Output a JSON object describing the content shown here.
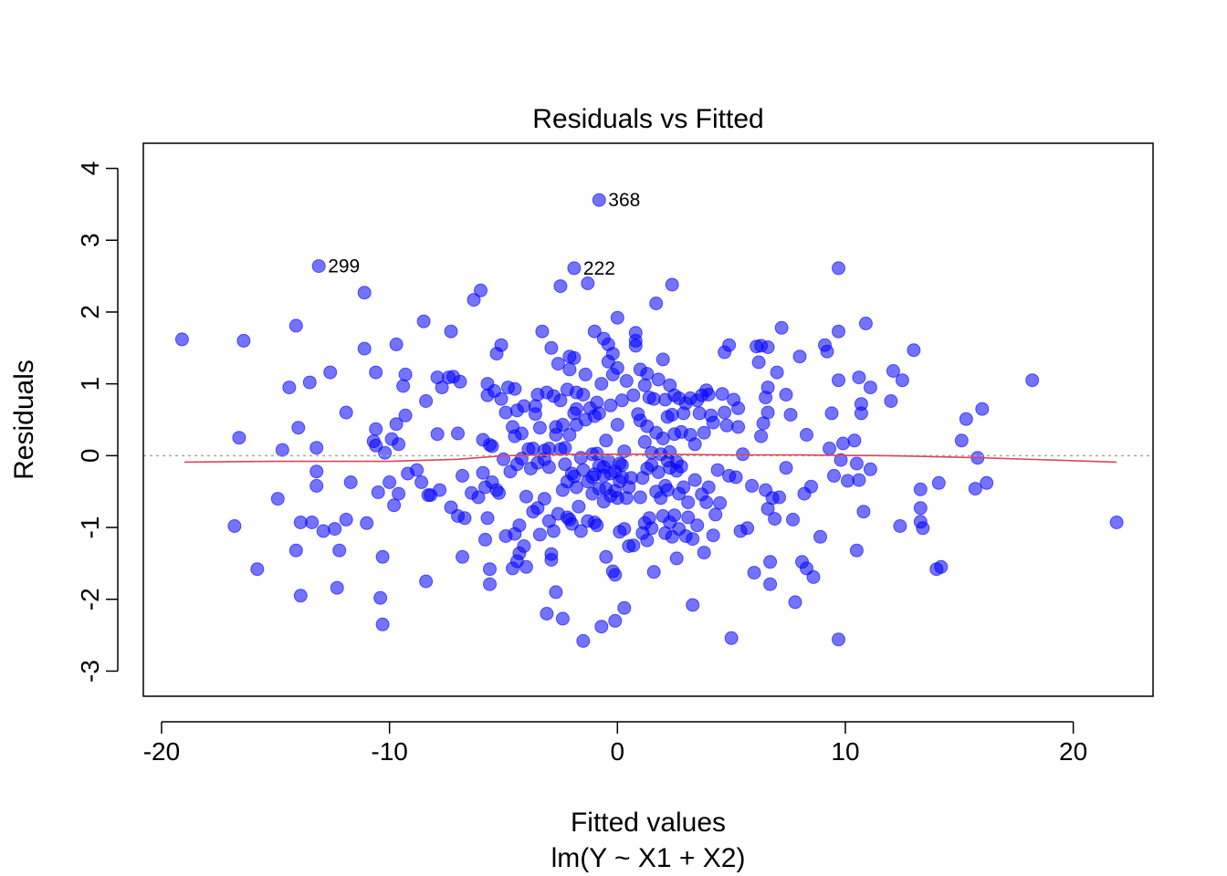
{
  "chart_data": {
    "type": "scatter",
    "title": "Residuals vs Fitted",
    "xlabel": "Fitted values",
    "sublabel": "lm(Y ~ X1 + X2)",
    "ylabel": "Residuals",
    "xlim": [
      -20.8,
      23.5
    ],
    "ylim": [
      -3.35,
      4.35
    ],
    "x_ticks": [
      -20,
      -10,
      0,
      10,
      20
    ],
    "x_tick_labels": [
      "-20",
      "-10",
      "0",
      "10",
      "20"
    ],
    "y_ticks": [
      -3,
      -2,
      -1,
      0,
      1,
      2,
      3,
      4
    ],
    "y_tick_labels": [
      "-3",
      "-2",
      "-1",
      "0",
      "1",
      "2",
      "3",
      "4"
    ],
    "grid": false,
    "reference_line": {
      "y": 0,
      "color": "#aaaaaa",
      "style": "dotted"
    },
    "point_color": "#0000ff",
    "point_alpha": 0.55,
    "smoother_color": "#d9465c",
    "labeled_points": [
      {
        "label": "368",
        "x": -0.8,
        "y": 3.56
      },
      {
        "label": "299",
        "x": -13.1,
        "y": 2.64
      },
      {
        "label": "222",
        "x": -1.9,
        "y": 2.61
      }
    ],
    "smoother": {
      "x": [
        -19.0,
        -15.0,
        -10.0,
        -7.0,
        -5.0,
        -2.0,
        0.0,
        2.0,
        5.0,
        8.0,
        12.0,
        16.0,
        21.9
      ],
      "y": [
        -0.09,
        -0.08,
        -0.08,
        -0.05,
        0.0,
        0.02,
        0.02,
        0.02,
        0.01,
        0.01,
        0.0,
        -0.03,
        -0.09
      ]
    },
    "points": [
      [
        -19.1,
        1.62
      ],
      [
        -16.8,
        -0.98
      ],
      [
        -16.6,
        0.25
      ],
      [
        -16.4,
        1.6
      ],
      [
        -15.8,
        -1.58
      ],
      [
        -14.9,
        -0.6
      ],
      [
        -14.7,
        0.08
      ],
      [
        -14.4,
        0.95
      ],
      [
        -14.1,
        -1.32
      ],
      [
        -14.1,
        1.81
      ],
      [
        -14.0,
        0.39
      ],
      [
        -13.9,
        -1.95
      ],
      [
        -13.9,
        -0.93
      ],
      [
        -13.5,
        1.02
      ],
      [
        -13.4,
        -0.93
      ],
      [
        -13.2,
        0.11
      ],
      [
        -13.2,
        -0.22
      ],
      [
        -13.2,
        -0.42
      ],
      [
        -12.9,
        -1.05
      ],
      [
        -12.6,
        1.16
      ],
      [
        -12.4,
        -1.02
      ],
      [
        -12.3,
        -1.84
      ],
      [
        -12.2,
        -1.32
      ],
      [
        -11.9,
        0.6
      ],
      [
        -11.9,
        -0.89
      ],
      [
        -11.7,
        -0.37
      ],
      [
        -11.1,
        2.27
      ],
      [
        -11.1,
        1.49
      ],
      [
        -11.0,
        -0.94
      ],
      [
        -10.7,
        0.2
      ],
      [
        -10.6,
        0.37
      ],
      [
        -10.6,
        0.14
      ],
      [
        -10.6,
        1.16
      ],
      [
        -10.5,
        -0.51
      ],
      [
        -10.4,
        -1.98
      ],
      [
        -10.3,
        -1.41
      ],
      [
        -10.3,
        -2.35
      ],
      [
        -10.2,
        0.04
      ],
      [
        -10.0,
        -0.37
      ],
      [
        -9.9,
        0.23
      ],
      [
        -9.8,
        -0.69
      ],
      [
        -9.7,
        1.55
      ],
      [
        -9.7,
        0.44
      ],
      [
        -9.6,
        0.16
      ],
      [
        -9.6,
        -0.53
      ],
      [
        -9.4,
        0.97
      ],
      [
        -9.3,
        0.56
      ],
      [
        -9.3,
        1.13
      ],
      [
        -9.2,
        -0.25
      ],
      [
        -8.8,
        -0.2
      ],
      [
        -8.6,
        -0.37
      ],
      [
        -8.5,
        1.87
      ],
      [
        -8.4,
        0.76
      ],
      [
        -8.4,
        -1.75
      ],
      [
        -8.3,
        -0.55
      ],
      [
        -8.2,
        -0.55
      ],
      [
        -7.9,
        1.09
      ],
      [
        -7.9,
        0.3
      ],
      [
        -7.8,
        -0.48
      ],
      [
        -7.7,
        0.95
      ],
      [
        -7.4,
        1.09
      ],
      [
        -7.3,
        1.73
      ],
      [
        -7.3,
        -0.72
      ],
      [
        -7.2,
        1.1
      ],
      [
        -7.0,
        0.31
      ],
      [
        -7.0,
        -0.84
      ],
      [
        -6.9,
        1.03
      ],
      [
        -6.8,
        -0.28
      ],
      [
        -6.8,
        -1.41
      ],
      [
        -6.7,
        -0.87
      ],
      [
        -6.4,
        -0.52
      ],
      [
        -6.3,
        2.17
      ],
      [
        -6.1,
        -0.58
      ],
      [
        -6.0,
        2.3
      ],
      [
        -5.9,
        0.22
      ],
      [
        -5.9,
        -0.24
      ],
      [
        -5.8,
        -0.44
      ],
      [
        -5.8,
        -1.17
      ],
      [
        -5.7,
        1.0
      ],
      [
        -5.7,
        -0.87
      ],
      [
        -5.7,
        0.84
      ],
      [
        -5.6,
        -1.79
      ],
      [
        -5.6,
        0.15
      ],
      [
        -5.6,
        -1.58
      ],
      [
        -5.5,
        0.13
      ],
      [
        -5.5,
        -0.37
      ],
      [
        -5.4,
        0.9
      ],
      [
        -5.3,
        -0.48
      ],
      [
        -5.3,
        1.42
      ],
      [
        -5.2,
        -0.52
      ],
      [
        -5.1,
        1.54
      ],
      [
        -5.1,
        0.79
      ],
      [
        -5.0,
        -0.05
      ],
      [
        -4.9,
        0.6
      ],
      [
        -4.9,
        -1.12
      ],
      [
        -4.8,
        0.95
      ],
      [
        -4.7,
        -0.22
      ],
      [
        -4.6,
        -1.57
      ],
      [
        -4.6,
        0.4
      ],
      [
        -4.5,
        0.93
      ],
      [
        -4.5,
        0.27
      ],
      [
        -4.5,
        -1.09
      ],
      [
        -4.4,
        -1.47
      ],
      [
        -4.4,
        0.63
      ],
      [
        -4.4,
        -0.12
      ],
      [
        -4.3,
        -0.97
      ],
      [
        -4.3,
        -1.36
      ],
      [
        -4.2,
        0.31
      ],
      [
        -4.2,
        -0.04
      ],
      [
        -4.1,
        0.69
      ],
      [
        -4.1,
        -1.26
      ],
      [
        -4.0,
        -1.55
      ],
      [
        -4.0,
        -0.57
      ],
      [
        -3.9,
        0.09
      ],
      [
        -3.8,
        -0.18
      ],
      [
        -3.7,
        -0.78
      ],
      [
        -3.7,
        0.1
      ],
      [
        -3.6,
        0.58
      ],
      [
        -3.6,
        0.69
      ],
      [
        -3.5,
        -0.1
      ],
      [
        -3.5,
        0.85
      ],
      [
        -3.5,
        -0.73
      ],
      [
        -3.4,
        -1.1
      ],
      [
        -3.4,
        0.39
      ],
      [
        -3.3,
        1.73
      ],
      [
        -3.2,
        0.07
      ],
      [
        -3.2,
        -0.05
      ],
      [
        -3.2,
        -0.6
      ],
      [
        -3.1,
        -2.2
      ],
      [
        -3.1,
        0.88
      ],
      [
        -3.0,
        -0.91
      ],
      [
        -3.0,
        0.1
      ],
      [
        -3.0,
        -0.16
      ],
      [
        -2.9,
        -1.37
      ],
      [
        -2.9,
        -1.45
      ],
      [
        -2.9,
        1.5
      ],
      [
        -2.8,
        0.83
      ],
      [
        -2.8,
        -1.05
      ],
      [
        -2.7,
        0.4
      ],
      [
        -2.7,
        -1.9
      ],
      [
        -2.7,
        0.29
      ],
      [
        -2.6,
        1.28
      ],
      [
        -2.6,
        -0.81
      ],
      [
        -2.5,
        2.36
      ],
      [
        -2.5,
        0.77
      ],
      [
        -2.5,
        0.09
      ],
      [
        -2.4,
        -2.27
      ],
      [
        -2.4,
        -0.48
      ],
      [
        -2.4,
        0.43
      ],
      [
        -2.3,
        0.11
      ],
      [
        -2.3,
        -0.12
      ],
      [
        -2.2,
        -0.86
      ],
      [
        -2.2,
        -0.36
      ],
      [
        -2.2,
        0.92
      ],
      [
        -2.1,
        0.29
      ],
      [
        -2.1,
        1.38
      ],
      [
        -2.1,
        -0.89
      ],
      [
        -2.1,
        1.2
      ],
      [
        -2.0,
        -0.95
      ],
      [
        -2.0,
        -0.25
      ],
      [
        -1.9,
        1.36
      ],
      [
        -1.9,
        0.59
      ],
      [
        -1.9,
        -0.29
      ],
      [
        -1.8,
        0.88
      ],
      [
        -1.8,
        -0.44
      ],
      [
        -1.8,
        0.43
      ],
      [
        -1.8,
        0.65
      ],
      [
        -1.7,
        -0.71
      ],
      [
        -1.6,
        -0.03
      ],
      [
        -1.6,
        -1.05
      ],
      [
        -1.5,
        -0.2
      ],
      [
        -1.5,
        -2.58
      ],
      [
        -1.5,
        0.85
      ],
      [
        -1.4,
        1.13
      ],
      [
        -1.4,
        0.5
      ],
      [
        -1.3,
        -0.36
      ],
      [
        -1.3,
        2.4
      ],
      [
        -1.3,
        -0.91
      ],
      [
        -1.2,
        0.66
      ],
      [
        -1.1,
        0.02
      ],
      [
        -1.1,
        -0.3
      ],
      [
        -1.1,
        -0.53
      ],
      [
        -1.0,
        1.73
      ],
      [
        -1.0,
        -0.26
      ],
      [
        -1.0,
        0.55
      ],
      [
        -1.0,
        -0.93
      ],
      [
        -0.9,
        0.74
      ],
      [
        -0.9,
        -0.97
      ],
      [
        -0.9,
        0.03
      ],
      [
        -0.8,
        -0.14
      ],
      [
        -0.8,
        0.59
      ],
      [
        -0.8,
        -0.46
      ],
      [
        -0.7,
        1.0
      ],
      [
        -0.7,
        -2.38
      ],
      [
        -0.6,
        -0.16
      ],
      [
        -0.6,
        1.63
      ],
      [
        -0.6,
        -0.64
      ],
      [
        -0.6,
        -0.28
      ],
      [
        -0.5,
        0.21
      ],
      [
        -0.5,
        -1.41
      ],
      [
        -0.5,
        -0.46
      ],
      [
        -0.4,
        1.31
      ],
      [
        -0.4,
        1.55
      ],
      [
        -0.4,
        -0.07
      ],
      [
        -0.3,
        0.7
      ],
      [
        -0.3,
        -0.56
      ],
      [
        -0.3,
        -0.25
      ],
      [
        -0.2,
        -1.61
      ],
      [
        -0.2,
        1.13
      ],
      [
        -0.2,
        1.42
      ],
      [
        -0.1,
        -2.3
      ],
      [
        -0.1,
        -1.66
      ],
      [
        -0.1,
        -0.22
      ],
      [
        -0.1,
        -0.49
      ],
      [
        0.0,
        1.92
      ],
      [
        0.0,
        -0.59
      ],
      [
        0.0,
        0.43
      ],
      [
        0.0,
        1.22
      ],
      [
        0.1,
        -1.06
      ],
      [
        0.1,
        -0.11
      ],
      [
        0.1,
        -0.36
      ],
      [
        0.2,
        -0.3
      ],
      [
        0.2,
        -0.13
      ],
      [
        0.2,
        0.77
      ],
      [
        0.3,
        -1.02
      ],
      [
        0.3,
        -2.12
      ],
      [
        0.3,
        0.06
      ],
      [
        0.4,
        -0.59
      ],
      [
        0.4,
        1.04
      ],
      [
        0.5,
        -1.26
      ],
      [
        0.5,
        -0.44
      ],
      [
        0.6,
        -0.31
      ],
      [
        0.7,
        0.84
      ],
      [
        0.7,
        -1.25
      ],
      [
        0.8,
        1.53
      ],
      [
        0.8,
        1.71
      ],
      [
        0.8,
        1.6
      ],
      [
        0.9,
        0.58
      ],
      [
        1.0,
        1.2
      ],
      [
        1.0,
        0.49
      ],
      [
        1.0,
        -0.58
      ],
      [
        1.1,
        -0.31
      ],
      [
        1.1,
        -1.08
      ],
      [
        1.2,
        0.19
      ],
      [
        1.2,
        -0.94
      ],
      [
        1.2,
        0.98
      ],
      [
        1.3,
        -0.18
      ],
      [
        1.3,
        1.14
      ],
      [
        1.3,
        -1.18
      ],
      [
        1.3,
        0.41
      ],
      [
        1.4,
        0.81
      ],
      [
        1.4,
        -0.87
      ],
      [
        1.5,
        -0.13
      ],
      [
        1.5,
        -1.01
      ],
      [
        1.5,
        0.04
      ],
      [
        1.6,
        -1.62
      ],
      [
        1.6,
        0.79
      ],
      [
        1.7,
        2.12
      ],
      [
        1.7,
        0.32
      ],
      [
        1.7,
        -0.5
      ],
      [
        1.8,
        1.06
      ],
      [
        1.8,
        -0.23
      ],
      [
        1.9,
        0.02
      ],
      [
        1.9,
        -0.59
      ],
      [
        2.0,
        1.34
      ],
      [
        2.0,
        -0.84
      ],
      [
        2.0,
        0.24
      ],
      [
        2.1,
        0.78
      ],
      [
        2.1,
        -1.08
      ],
      [
        2.1,
        -0.42
      ],
      [
        2.2,
        -0.07
      ],
      [
        2.2,
        0.54
      ],
      [
        2.2,
        -0.48
      ],
      [
        2.3,
        0.98
      ],
      [
        2.3,
        -0.17
      ],
      [
        2.3,
        -0.93
      ],
      [
        2.3,
        0.05
      ],
      [
        2.4,
        2.38
      ],
      [
        2.4,
        -1.13
      ],
      [
        2.4,
        0.57
      ],
      [
        2.5,
        0.84
      ],
      [
        2.5,
        -0.83
      ],
      [
        2.5,
        0.3
      ],
      [
        2.6,
        -0.21
      ],
      [
        2.6,
        -1.43
      ],
      [
        2.6,
        -0.09
      ],
      [
        2.7,
        0.8
      ],
      [
        2.7,
        -0.53
      ],
      [
        2.7,
        -1.02
      ],
      [
        2.8,
        0.33
      ],
      [
        2.8,
        -0.15
      ],
      [
        2.9,
        -0.44
      ],
      [
        2.9,
        0.59
      ],
      [
        3.0,
        0.73
      ],
      [
        3.0,
        -1.12
      ],
      [
        3.1,
        -0.65
      ],
      [
        3.1,
        -0.86
      ],
      [
        3.2,
        0.29
      ],
      [
        3.2,
        0.8
      ],
      [
        3.3,
        -2.08
      ],
      [
        3.3,
        -1.16
      ],
      [
        3.4,
        0.16
      ],
      [
        3.4,
        -0.34
      ],
      [
        3.5,
        0.77
      ],
      [
        3.5,
        -0.97
      ],
      [
        3.6,
        0.59
      ],
      [
        3.7,
        0.84
      ],
      [
        3.7,
        -0.54
      ],
      [
        3.8,
        -1.35
      ],
      [
        3.8,
        0.32
      ],
      [
        3.9,
        -0.65
      ],
      [
        3.9,
        0.91
      ],
      [
        4.0,
        -0.44
      ],
      [
        4.0,
        0.85
      ],
      [
        4.1,
        0.56
      ],
      [
        4.2,
        -1.11
      ],
      [
        4.2,
        0.46
      ],
      [
        4.3,
        -0.82
      ],
      [
        4.4,
        -0.2
      ],
      [
        4.5,
        -0.66
      ],
      [
        4.6,
        0.86
      ],
      [
        4.7,
        0.6
      ],
      [
        4.7,
        1.44
      ],
      [
        4.8,
        0.42
      ],
      [
        4.9,
        -0.28
      ],
      [
        4.9,
        1.54
      ],
      [
        5.0,
        -2.54
      ],
      [
        5.1,
        0.78
      ],
      [
        5.2,
        -0.3
      ],
      [
        5.3,
        0.4
      ],
      [
        5.3,
        0.66
      ],
      [
        5.4,
        -1.05
      ],
      [
        5.5,
        0.02
      ],
      [
        5.7,
        -1.01
      ],
      [
        5.9,
        -0.42
      ],
      [
        6.0,
        -1.63
      ],
      [
        6.1,
        1.52
      ],
      [
        6.2,
        1.3
      ],
      [
        6.3,
        0.27
      ],
      [
        6.3,
        1.53
      ],
      [
        6.4,
        0.45
      ],
      [
        6.5,
        0.81
      ],
      [
        6.5,
        -0.48
      ],
      [
        6.6,
        0.95
      ],
      [
        6.6,
        0.6
      ],
      [
        6.6,
        1.51
      ],
      [
        6.6,
        -0.74
      ],
      [
        6.7,
        -1.79
      ],
      [
        6.7,
        -1.48
      ],
      [
        6.8,
        -0.59
      ],
      [
        6.9,
        -0.88
      ],
      [
        7.0,
        1.16
      ],
      [
        7.1,
        -0.58
      ],
      [
        7.2,
        1.78
      ],
      [
        7.4,
        0.85
      ],
      [
        7.4,
        -0.17
      ],
      [
        7.6,
        0.57
      ],
      [
        7.7,
        -0.89
      ],
      [
        7.8,
        -2.04
      ],
      [
        8.0,
        1.38
      ],
      [
        8.1,
        -1.48
      ],
      [
        8.2,
        -0.53
      ],
      [
        8.3,
        -1.57
      ],
      [
        8.3,
        0.29
      ],
      [
        8.5,
        -0.43
      ],
      [
        8.6,
        -1.69
      ],
      [
        8.9,
        -1.13
      ],
      [
        9.1,
        1.54
      ],
      [
        9.2,
        1.45
      ],
      [
        9.3,
        0.1
      ],
      [
        9.4,
        0.59
      ],
      [
        9.5,
        -0.28
      ],
      [
        9.7,
        2.61
      ],
      [
        9.7,
        1.73
      ],
      [
        9.7,
        -2.56
      ],
      [
        9.7,
        1.05
      ],
      [
        9.8,
        -0.06
      ],
      [
        9.9,
        0.17
      ],
      [
        10.1,
        -0.35
      ],
      [
        10.4,
        0.21
      ],
      [
        10.5,
        -1.32
      ],
      [
        10.5,
        -0.11
      ],
      [
        10.6,
        -0.34
      ],
      [
        10.6,
        1.09
      ],
      [
        10.7,
        0.59
      ],
      [
        10.7,
        0.72
      ],
      [
        10.8,
        -0.78
      ],
      [
        10.9,
        1.84
      ],
      [
        11.1,
        0.95
      ],
      [
        11.1,
        -0.19
      ],
      [
        12.0,
        0.76
      ],
      [
        12.1,
        1.18
      ],
      [
        12.4,
        -0.98
      ],
      [
        12.5,
        1.05
      ],
      [
        13.0,
        1.47
      ],
      [
        13.3,
        -0.47
      ],
      [
        13.3,
        -0.73
      ],
      [
        13.3,
        -0.92
      ],
      [
        13.4,
        -1.01
      ],
      [
        14.0,
        -1.58
      ],
      [
        14.1,
        -0.38
      ],
      [
        14.2,
        -1.55
      ],
      [
        15.1,
        0.21
      ],
      [
        15.3,
        0.51
      ],
      [
        15.7,
        -0.46
      ],
      [
        15.8,
        -0.03
      ],
      [
        16.0,
        0.65
      ],
      [
        16.2,
        -0.38
      ],
      [
        18.2,
        1.05
      ],
      [
        21.9,
        -0.93
      ],
      [
        -0.8,
        3.56
      ],
      [
        -13.1,
        2.64
      ],
      [
        -1.9,
        2.61
      ]
    ]
  }
}
